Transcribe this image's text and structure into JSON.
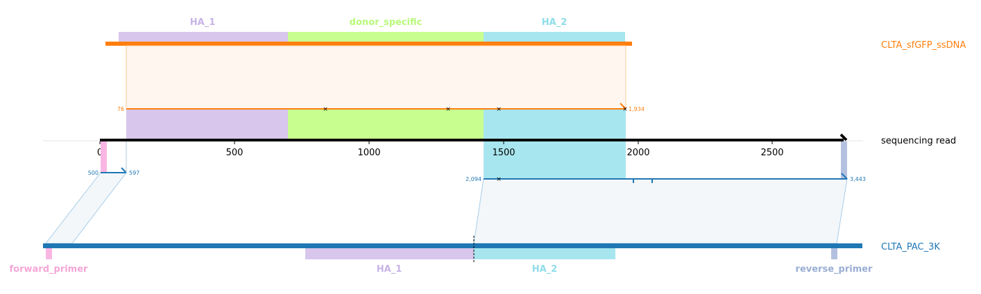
{
  "colors": {
    "ha1": "#d8c6ec",
    "ha1_text": "#c8b4e6",
    "donor": "#c8fe90",
    "donor_text": "#b8f97a",
    "ha2": "#a8e6ef",
    "ha2_text": "#8fdde9",
    "donor_track": "#ff7f0e",
    "amplicon_track": "#1f77b4",
    "forward_primer": "#f9b6e2",
    "forward_primer_text": "#f4a6d7",
    "reverse_primer": "#b4c0df",
    "reverse_primer_text": "#9aaed4",
    "read": "#000000"
  },
  "top_features": [
    {
      "name": "HA_1"
    },
    {
      "name": "donor_specific"
    },
    {
      "name": "HA_2"
    }
  ],
  "donor_track": {
    "label": "CLTA_sfGFP_ssDNA",
    "start_coord": "76",
    "end_coord": "1,934"
  },
  "read_axis": {
    "label": "sequencing read",
    "ticks": [
      "0",
      "500",
      "1000",
      "1500",
      "2000",
      "2500"
    ]
  },
  "alignment_left": {
    "start_coord": "500",
    "end_coord": "597"
  },
  "alignment_right": {
    "start_coord": "2,094",
    "end_coord": "3,443"
  },
  "amplicon_track": {
    "label": "CLTA_PAC_3K"
  },
  "bottom_features": [
    {
      "name": "forward_primer"
    },
    {
      "name": "HA_1"
    },
    {
      "name": "HA_2"
    },
    {
      "name": "reverse_primer"
    }
  ]
}
